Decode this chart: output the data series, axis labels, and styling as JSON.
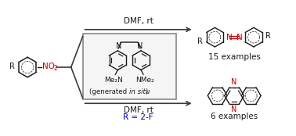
{
  "bg_color": "#ffffff",
  "arrow_color": "#3a3a3a",
  "box_color": "#888888",
  "text_black": "#1a1a1a",
  "text_red": "#cc0000",
  "text_blue": "#0000cc",
  "dmf_rt_top": "DMF, rt",
  "dmf_rt_bottom": "DMF, rt",
  "r_2f": "R = 2-F",
  "examples_top": "15 examples",
  "examples_bottom": "6 examples",
  "me2n": "Me₂N",
  "nme2": "NMe₂",
  "generated_normal": "(generated ",
  "generated_italic": "in situ",
  "generated_end": ")",
  "layout": {
    "fig_w": 3.78,
    "fig_h": 1.74,
    "dpi": 100,
    "xlim": [
      0,
      378
    ],
    "ylim": [
      0,
      174
    ]
  }
}
